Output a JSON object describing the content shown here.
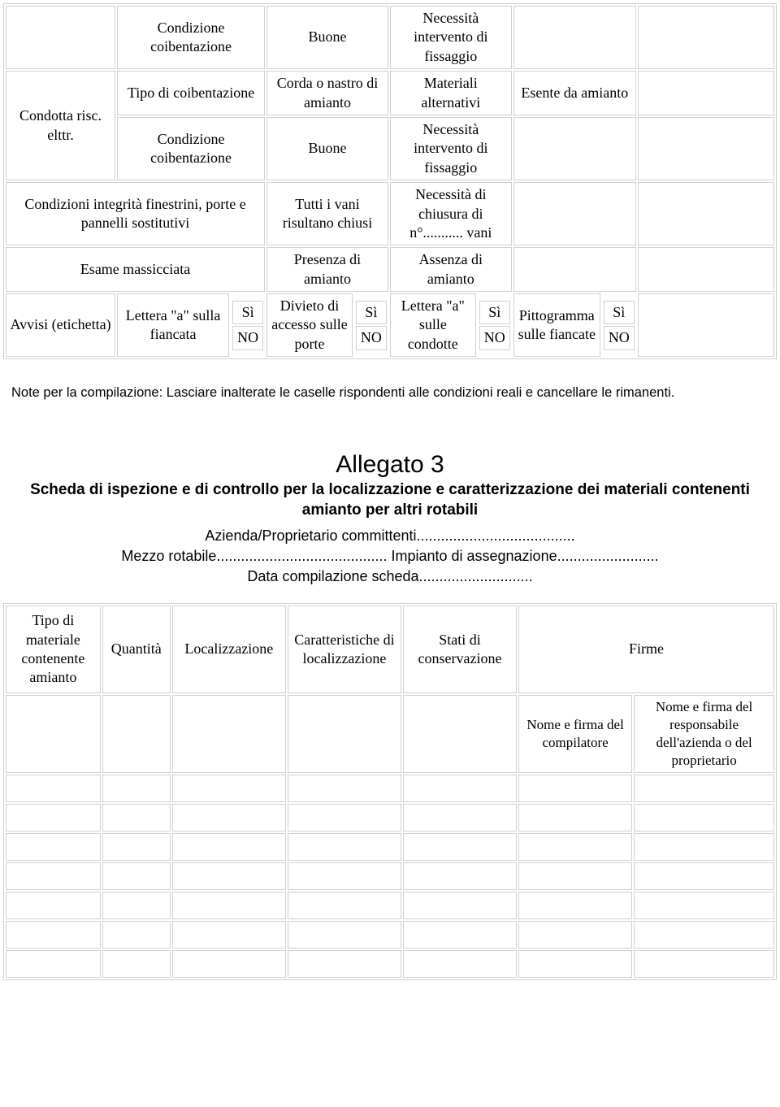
{
  "table1": {
    "r1": {
      "c2": "Condizione coibentazione",
      "c3": "Buone",
      "c4": "Necessità intervento di fissaggio"
    },
    "r2": {
      "c1": "Condotta risc. elttr.",
      "c2": "Tipo di coibentazione",
      "c3": "Corda o nastro di amianto",
      "c4": "Materiali alternativi",
      "c5": "Esente da amianto"
    },
    "r3": {
      "c2": "Condizione coibentazione",
      "c3": "Buone",
      "c4": "Necessità intervento di fissaggio"
    },
    "r4": {
      "c1": "Condizioni integrità finestrini, porte e pannelli sostitutivi",
      "c3": "Tutti i vani risultano chiusi",
      "c4": "Necessità di chiusura di n°........... vani"
    },
    "r5": {
      "c1": "Esame massicciata",
      "c3": "Presenza di amianto",
      "c4": "Assenza di amianto"
    },
    "r6": {
      "c1": "Avvisi (etichetta)",
      "c2": "Lettera \"a\" sulla fiancata",
      "c3": "Divieto di accesso sulle porte",
      "c4": "Lettera \"a\" sulle condotte",
      "c5": "Pittogramma sulle fiancate",
      "si": "Sì",
      "no": "NO"
    }
  },
  "note": "Note per la compilazione: Lasciare inalterate le caselle rispondenti alle condizioni reali e cancellare le rimanenti.",
  "allegato": {
    "title": "Allegato 3",
    "subtitle": "Scheda di ispezione e di controllo per la localizzazione e caratterizzazione dei materiali contenenti amianto per altri rotabili",
    "line1": "Azienda/Proprietario committenti.......................................",
    "line2": "Mezzo rotabile.......................................... Impianto di assegnazione.........................",
    "line3": "Data compilazione scheda............................"
  },
  "table2": {
    "headers": {
      "h1": "Tipo di materiale contenente amianto",
      "h2": "Quantità",
      "h3": "Localizzazione",
      "h4": "Caratteristiche di localizzazione",
      "h5": "Stati di conservazione",
      "h6": "Firme",
      "sig1": "Nome e firma del compilatore",
      "sig2": "Nome e firma del responsabile dell'azienda o del proprietario"
    },
    "empty_rows": 7,
    "col_widths": [
      "12.5%",
      "9%",
      "15%",
      "15%",
      "15%",
      "15%",
      "18.5%"
    ]
  },
  "colors": {
    "border": "#d0d0d0",
    "text": "#000000",
    "bg": "#ffffff"
  },
  "fonts": {
    "serif": "Georgia, Times New Roman",
    "sans": "Verdana, Arial"
  }
}
